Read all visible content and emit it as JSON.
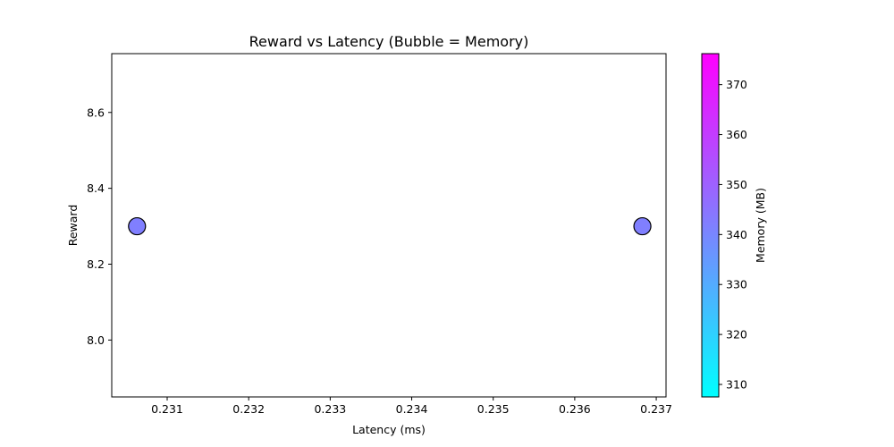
{
  "chart_data": {
    "type": "scatter",
    "title": "Reward vs Latency (Bubble = Memory)",
    "xlabel": "Latency (ms)",
    "ylabel": "Reward",
    "xlim": [
      0.23032,
      0.23712
    ],
    "ylim": [
      7.85,
      8.755
    ],
    "xticks": [
      0.231,
      0.232,
      0.233,
      0.234,
      0.235,
      0.236,
      0.237
    ],
    "xtick_labels": [
      "0.231",
      "0.232",
      "0.233",
      "0.234",
      "0.235",
      "0.236",
      "0.237"
    ],
    "yticks": [
      8.0,
      8.2,
      8.4,
      8.6
    ],
    "ytick_labels": [
      "8.0",
      "8.2",
      "8.4",
      "8.6"
    ],
    "grid": false,
    "points": [
      {
        "x": 0.23063,
        "y": 8.3,
        "memory": 342
      },
      {
        "x": 0.23683,
        "y": 8.3,
        "memory": 342
      }
    ],
    "colorbar": {
      "label": "Memory (MB)",
      "range": [
        307.5,
        376.2
      ],
      "ticks": [
        310,
        320,
        330,
        340,
        350,
        360,
        370
      ],
      "tick_labels": [
        "310",
        "320",
        "330",
        "340",
        "350",
        "360",
        "370"
      ],
      "colormap": "cool",
      "color_low": "#00ffff",
      "color_high": "#ff00ff"
    },
    "marker_edge_color": "#000000"
  }
}
